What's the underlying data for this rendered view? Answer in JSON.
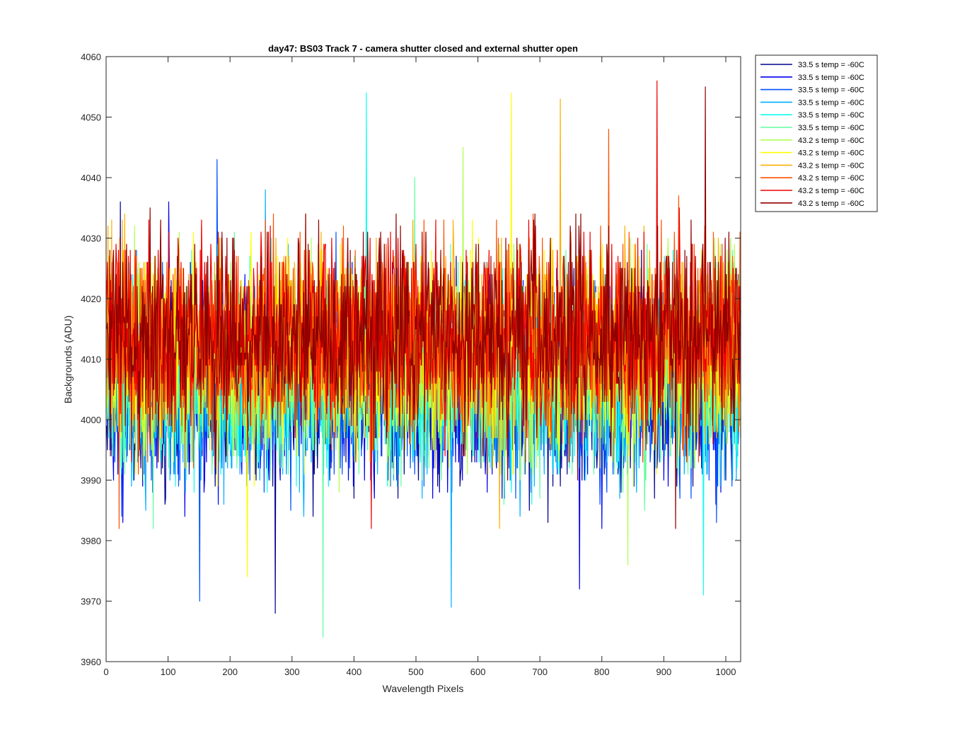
{
  "chart_data": {
    "type": "line",
    "title": "day47: BS03  Track 7 - camera shutter closed and external shutter open",
    "xlabel": "Wavelength Pixels",
    "ylabel": "Backgrounds (ADU)",
    "xlim": [
      0,
      1024
    ],
    "ylim": [
      3960,
      4060
    ],
    "xticks": [
      "0",
      "100",
      "200",
      "300",
      "400",
      "500",
      "600",
      "700",
      "800",
      "900",
      "1000"
    ],
    "yticks": [
      "3960",
      "3970",
      "3980",
      "3990",
      "4000",
      "4010",
      "4020",
      "4030",
      "4040",
      "4050",
      "4060"
    ],
    "grid": false,
    "legend_position": "outside-top-right",
    "n_points": 1024,
    "series": [
      {
        "name": "33.5 s temp = -60C",
        "color": "#00008f",
        "mean": 4006,
        "spread": 8,
        "min": 3968,
        "max": 4036
      },
      {
        "name": "33.5 s temp = -60C",
        "color": "#0000ef",
        "mean": 4006,
        "spread": 8,
        "min": 3972,
        "max": 4036
      },
      {
        "name": "33.5 s temp = -60C",
        "color": "#0050ff",
        "mean": 4006,
        "spread": 8,
        "min": 3970,
        "max": 4043
      },
      {
        "name": "33.5 s temp = -60C",
        "color": "#00afff",
        "mean": 4006,
        "spread": 8,
        "min": 3969,
        "max": 4038
      },
      {
        "name": "33.5 s temp = -60C",
        "color": "#10ffef",
        "mean": 4007,
        "spread": 8,
        "min": 3971,
        "max": 4054
      },
      {
        "name": "33.5 s temp = -60C",
        "color": "#60ff9f",
        "mean": 4007,
        "spread": 8,
        "min": 3964,
        "max": 4040
      },
      {
        "name": "43.2 s temp = -60C",
        "color": "#afff50",
        "mean": 4010,
        "spread": 8,
        "min": 3976,
        "max": 4045
      },
      {
        "name": "43.2 s temp = -60C",
        "color": "#ffff00",
        "mean": 4011,
        "spread": 8,
        "min": 3974,
        "max": 4054
      },
      {
        "name": "43.2 s temp = -60C",
        "color": "#ffaf00",
        "mean": 4013,
        "spread": 8,
        "min": 3982,
        "max": 4053
      },
      {
        "name": "43.2 s temp = -60C",
        "color": "#ff5000",
        "mean": 4013,
        "spread": 8,
        "min": 3982,
        "max": 4048
      },
      {
        "name": "43.2 s temp = -60C",
        "color": "#ef0000",
        "mean": 4014,
        "spread": 8,
        "min": 3982,
        "max": 4056
      },
      {
        "name": "43.2 s temp = -60C",
        "color": "#8f0000",
        "mean": 4014,
        "spread": 8,
        "min": 3982,
        "max": 4055
      }
    ]
  }
}
